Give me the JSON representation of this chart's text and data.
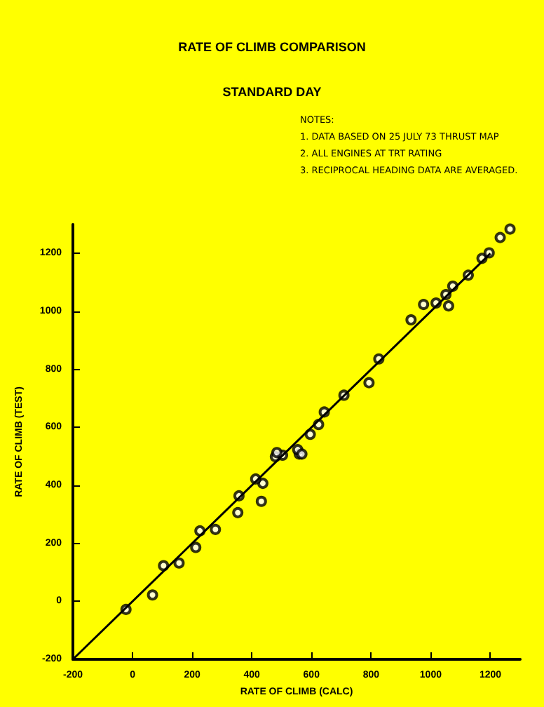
{
  "chart_data": {
    "type": "scatter",
    "title": "RATE OF CLIMB COMPARISON",
    "subtitle": "STANDARD DAY",
    "xlabel": "RATE OF CLIMB (CALC)",
    "ylabel": "RATE OF CLIMB (TEST)",
    "annotations": [
      "NOTES:",
      "1. DATA BASED ON 25 JULY 73 THRUST MAP",
      "2. ALL ENGINES AT TRT RATING",
      "3. RECIPROCAL HEADING DATA ARE AVERAGED."
    ],
    "xlim": [
      -200,
      1300
    ],
    "ylim": [
      -200,
      1300
    ],
    "xticks": [
      -200,
      0,
      200,
      400,
      600,
      800,
      1000,
      1200
    ],
    "yticks": [
      -200,
      0,
      200,
      400,
      600,
      800,
      1000,
      1200
    ],
    "marker": "circle",
    "series": [
      {
        "color": "#000000",
        "x": [
          -22,
          67,
          104,
          156,
          212,
          226,
          278,
          353,
          357,
          432,
          437,
          413,
          479,
          503,
          559,
          484,
          554,
          568,
          596,
          624,
          643,
          709,
          793,
          826,
          934,
          976,
          1018,
          1060,
          1051,
          1074,
          1126,
          1172,
          1196,
          1233,
          1266
        ],
        "values": [
          -28,
          22,
          123,
          132,
          186,
          243,
          248,
          306,
          364,
          345,
          407,
          422,
          499,
          504,
          508,
          513,
          523,
          508,
          576,
          610,
          653,
          711,
          754,
          836,
          971,
          1024,
          1029,
          1019,
          1058,
          1087,
          1125,
          1183,
          1202,
          1255,
          1284
        ]
      },
      {
        "type": "line",
        "color": "#000000",
        "x": [
          -200,
          1200
        ],
        "values": [
          -200,
          1200
        ],
        "marker": "none",
        "line_style": "solid"
      }
    ]
  }
}
